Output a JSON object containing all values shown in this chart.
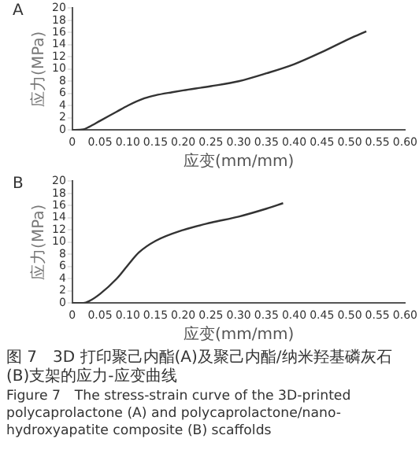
{
  "chart_data": [
    {
      "type": "line",
      "xlabel": "应变(mm/mm)",
      "ylabel": "应力(MPa)",
      "annotations": [
        "A"
      ],
      "x": [
        0,
        0.02,
        0.03,
        0.05,
        0.08,
        0.1,
        0.13,
        0.15,
        0.18,
        0.2,
        0.25,
        0.3,
        0.35,
        0.4,
        0.45,
        0.5,
        0.53
      ],
      "series": [
        {
          "color": "#333333",
          "values": [
            0,
            0.1,
            0.5,
            1.5,
            3,
            4,
            5.2,
            5.7,
            6.2,
            6.5,
            7.2,
            8,
            9.3,
            10.8,
            12.8,
            15,
            16.2
          ]
        }
      ],
      "xlim": [
        0,
        0.6
      ],
      "xticks": [
        0,
        0.05,
        {
          "value": 0.1,
          "label": "0.10"
        },
        0.15,
        {
          "value": 0.2,
          "label": "0.20"
        },
        0.25,
        {
          "value": 0.3,
          "label": "0.30"
        },
        0.35,
        {
          "value": 0.4,
          "label": "0.40"
        },
        0.45,
        {
          "value": 0.5,
          "label": "0.50"
        },
        0.55,
        {
          "value": 0.6,
          "label": "0.60"
        }
      ],
      "ylim": [
        0,
        20
      ],
      "yticks": [
        0,
        2,
        4,
        6,
        8,
        10,
        12,
        14,
        16,
        18,
        20
      ],
      "grid": false,
      "legend": false,
      "marker": "none",
      "line_style": "solid"
    },
    {
      "type": "line",
      "xlabel": "应变(mm/mm)",
      "ylabel": "应力(MPa)",
      "annotations": [
        "B",
        "图 7　3D 打印聚己内酯(A)及聚己内酯/纳米羟基磷灰石(B)支架的应力-应变曲线",
        "Figure 7　The stress-strain curve of the 3D-printed polycaprolactone (A) and polycaprolactone/nano-hydroxyapatite composite (B) scaffolds"
      ],
      "x": [
        0,
        0.02,
        0.03,
        0.05,
        0.08,
        0.1,
        0.12,
        0.15,
        0.2,
        0.25,
        0.3,
        0.35,
        0.38
      ],
      "series": [
        {
          "color": "#333333",
          "values": [
            0,
            0,
            0.3,
            1.5,
            4,
            6.2,
            8.3,
            10.2,
            12,
            13.2,
            14.2,
            15.5,
            16.4
          ]
        }
      ],
      "xlim": [
        0,
        0.6
      ],
      "xticks": [
        0,
        0.05,
        {
          "value": 0.1,
          "label": "0.10"
        },
        0.15,
        {
          "value": 0.2,
          "label": "0.20"
        },
        0.25,
        {
          "value": 0.3,
          "label": "0.30"
        },
        0.35,
        {
          "value": 0.4,
          "label": "0.40"
        },
        0.45,
        {
          "value": 0.5,
          "label": "0.50"
        },
        0.55,
        {
          "value": 0.6,
          "label": "0.60"
        }
      ],
      "ylim": [
        0,
        20
      ],
      "yticks": [
        0,
        2,
        4,
        6,
        8,
        10,
        12,
        14,
        16,
        18,
        20
      ],
      "grid": false,
      "legend": false,
      "marker": "none",
      "line_style": "solid"
    }
  ]
}
